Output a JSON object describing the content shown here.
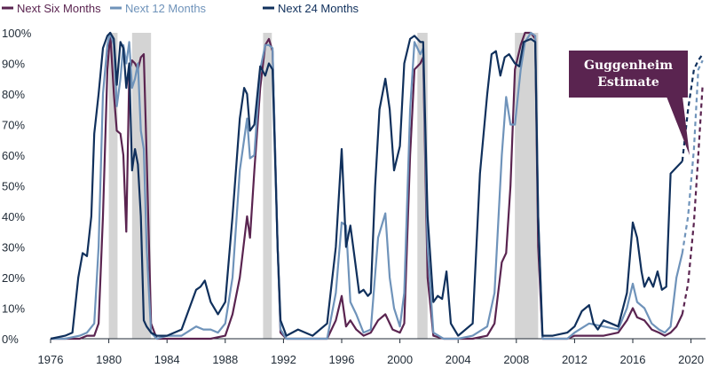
{
  "chart_data": {
    "type": "line",
    "title": "",
    "xlabel": "",
    "ylabel": "",
    "xlim": [
      1976,
      2021
    ],
    "ylim": [
      0,
      100
    ],
    "y_ticks": [
      "0%",
      "10%",
      "20%",
      "30%",
      "40%",
      "50%",
      "60%",
      "70%",
      "80%",
      "90%",
      "100%"
    ],
    "x_ticks": [
      "1976",
      "1980",
      "1984",
      "1988",
      "1992",
      "1996",
      "2000",
      "2004",
      "2008",
      "2012",
      "2016",
      "2020"
    ],
    "grid": false,
    "legend_position": "top-left",
    "recessions": [
      [
        1980.0,
        1980.6
      ],
      [
        1981.6,
        1982.9
      ],
      [
        1990.6,
        1991.2
      ],
      [
        2001.2,
        2001.9
      ],
      [
        2007.9,
        2009.5
      ]
    ],
    "series": [
      {
        "name": "Next Six Months",
        "color": "#5a2450",
        "dashed_from": 2019.4,
        "points": [
          [
            1976,
            0
          ],
          [
            1977,
            0
          ],
          [
            1978,
            0
          ],
          [
            1978.5,
            1
          ],
          [
            1979,
            1
          ],
          [
            1979.3,
            5
          ],
          [
            1979.6,
            40
          ],
          [
            1979.9,
            88
          ],
          [
            1980.1,
            100
          ],
          [
            1980.35,
            80
          ],
          [
            1980.55,
            68
          ],
          [
            1980.8,
            67
          ],
          [
            1981,
            60
          ],
          [
            1981.2,
            35
          ],
          [
            1981.4,
            86
          ],
          [
            1981.6,
            91
          ],
          [
            1981.8,
            90
          ],
          [
            1982,
            88
          ],
          [
            1982.2,
            92
          ],
          [
            1982.4,
            93
          ],
          [
            1982.6,
            60
          ],
          [
            1982.9,
            5
          ],
          [
            1983.3,
            0
          ],
          [
            1984,
            0
          ],
          [
            1985,
            0
          ],
          [
            1986,
            0
          ],
          [
            1987,
            0
          ],
          [
            1988,
            1
          ],
          [
            1988.5,
            8
          ],
          [
            1989,
            20
          ],
          [
            1989.5,
            40
          ],
          [
            1989.7,
            33
          ],
          [
            1990,
            55
          ],
          [
            1990.4,
            82
          ],
          [
            1990.75,
            96
          ],
          [
            1991,
            98
          ],
          [
            1991.25,
            94
          ],
          [
            1991.6,
            30
          ],
          [
            1991.8,
            2
          ],
          [
            1992.2,
            0
          ],
          [
            1993,
            0
          ],
          [
            1994,
            0
          ],
          [
            1995,
            0
          ],
          [
            1995.6,
            6
          ],
          [
            1996,
            14
          ],
          [
            1996.3,
            4
          ],
          [
            1996.6,
            6
          ],
          [
            1997,
            3
          ],
          [
            1997.5,
            1
          ],
          [
            1998,
            2
          ],
          [
            1998.5,
            6
          ],
          [
            1999,
            8
          ],
          [
            1999.5,
            3
          ],
          [
            2000,
            2
          ],
          [
            2000.3,
            5
          ],
          [
            2000.7,
            60
          ],
          [
            2001,
            88
          ],
          [
            2001.4,
            90
          ],
          [
            2001.6,
            92
          ],
          [
            2001.9,
            20
          ],
          [
            2002.3,
            1
          ],
          [
            2003,
            0
          ],
          [
            2004,
            0
          ],
          [
            2005,
            0
          ],
          [
            2006,
            1
          ],
          [
            2006.5,
            5
          ],
          [
            2007,
            25
          ],
          [
            2007.3,
            28
          ],
          [
            2007.6,
            50
          ],
          [
            2007.9,
            88
          ],
          [
            2008.3,
            96
          ],
          [
            2008.6,
            100
          ],
          [
            2009,
            100
          ],
          [
            2009.3,
            98
          ],
          [
            2009.5,
            30
          ],
          [
            2009.8,
            0
          ],
          [
            2010.5,
            0
          ],
          [
            2011.5,
            0
          ],
          [
            2012,
            1
          ],
          [
            2013,
            1
          ],
          [
            2014,
            1
          ],
          [
            2015,
            2
          ],
          [
            2015.6,
            6
          ],
          [
            2016,
            10
          ],
          [
            2016.3,
            7
          ],
          [
            2016.8,
            6
          ],
          [
            2017.3,
            3
          ],
          [
            2017.8,
            2
          ],
          [
            2018.2,
            1
          ],
          [
            2018.6,
            2
          ],
          [
            2019,
            4
          ],
          [
            2019.4,
            8
          ],
          [
            2019.8,
            18
          ],
          [
            2020.2,
            38
          ],
          [
            2020.5,
            60
          ],
          [
            2020.8,
            83
          ]
        ]
      },
      {
        "name": "Next 12 Months",
        "color": "#6f93ba",
        "dashed_from": 2019.4,
        "points": [
          [
            1976,
            0
          ],
          [
            1977,
            0
          ],
          [
            1978,
            1
          ],
          [
            1978.5,
            2
          ],
          [
            1979,
            5
          ],
          [
            1979.3,
            30
          ],
          [
            1979.6,
            80
          ],
          [
            1979.9,
            96
          ],
          [
            1980.1,
            100
          ],
          [
            1980.35,
            96
          ],
          [
            1980.55,
            76
          ],
          [
            1980.8,
            85
          ],
          [
            1981,
            96
          ],
          [
            1981.2,
            90
          ],
          [
            1981.4,
            97
          ],
          [
            1981.6,
            82
          ],
          [
            1981.8,
            85
          ],
          [
            1982,
            90
          ],
          [
            1982.2,
            68
          ],
          [
            1982.4,
            62
          ],
          [
            1982.6,
            30
          ],
          [
            1982.9,
            2
          ],
          [
            1983.3,
            0
          ],
          [
            1984,
            1
          ],
          [
            1985,
            1
          ],
          [
            1986,
            4
          ],
          [
            1986.5,
            3
          ],
          [
            1987,
            3
          ],
          [
            1987.5,
            2
          ],
          [
            1988,
            5
          ],
          [
            1988.5,
            20
          ],
          [
            1989,
            55
          ],
          [
            1989.5,
            72
          ],
          [
            1989.7,
            59
          ],
          [
            1990,
            60
          ],
          [
            1990.4,
            88
          ],
          [
            1990.75,
            96
          ],
          [
            1991,
            96
          ],
          [
            1991.25,
            95
          ],
          [
            1991.6,
            30
          ],
          [
            1991.8,
            3
          ],
          [
            1992.2,
            0
          ],
          [
            1993,
            0
          ],
          [
            1994,
            0
          ],
          [
            1995,
            0
          ],
          [
            1995.6,
            15
          ],
          [
            1996,
            38
          ],
          [
            1996.3,
            37
          ],
          [
            1996.6,
            12
          ],
          [
            1997,
            8
          ],
          [
            1997.5,
            2
          ],
          [
            1998,
            3
          ],
          [
            1998.5,
            33
          ],
          [
            1999,
            41
          ],
          [
            1999.3,
            20
          ],
          [
            1999.6,
            10
          ],
          [
            2000,
            4
          ],
          [
            2000.3,
            15
          ],
          [
            2000.7,
            75
          ],
          [
            2001,
            97
          ],
          [
            2001.4,
            93
          ],
          [
            2001.6,
            95
          ],
          [
            2001.9,
            30
          ],
          [
            2002.3,
            2
          ],
          [
            2003,
            0
          ],
          [
            2004,
            0
          ],
          [
            2005,
            1
          ],
          [
            2006,
            4
          ],
          [
            2006.5,
            15
          ],
          [
            2007,
            60
          ],
          [
            2007.3,
            79
          ],
          [
            2007.6,
            70
          ],
          [
            2007.9,
            70
          ],
          [
            2008.3,
            88
          ],
          [
            2008.6,
            97
          ],
          [
            2009,
            100
          ],
          [
            2009.3,
            99
          ],
          [
            2009.5,
            40
          ],
          [
            2009.8,
            0
          ],
          [
            2010.5,
            0
          ],
          [
            2011.5,
            0
          ],
          [
            2012,
            2
          ],
          [
            2013,
            5
          ],
          [
            2014,
            4
          ],
          [
            2015,
            3
          ],
          [
            2015.6,
            10
          ],
          [
            2016,
            18
          ],
          [
            2016.3,
            12
          ],
          [
            2016.8,
            10
          ],
          [
            2017.3,
            5
          ],
          [
            2017.8,
            3
          ],
          [
            2018.2,
            2
          ],
          [
            2018.6,
            4
          ],
          [
            2019,
            20
          ],
          [
            2019.4,
            28
          ],
          [
            2019.8,
            40
          ],
          [
            2020.2,
            62
          ],
          [
            2020.5,
            88
          ],
          [
            2020.8,
            91
          ]
        ]
      },
      {
        "name": "Next 24 Months",
        "color": "#10305c",
        "dashed_from": 2019.4,
        "points": [
          [
            1976,
            0
          ],
          [
            1977,
            1
          ],
          [
            1977.5,
            2
          ],
          [
            1977.9,
            20
          ],
          [
            1978.2,
            28
          ],
          [
            1978.5,
            27
          ],
          [
            1978.8,
            40
          ],
          [
            1979,
            67
          ],
          [
            1979.3,
            80
          ],
          [
            1979.6,
            95
          ],
          [
            1979.9,
            99
          ],
          [
            1980.1,
            100
          ],
          [
            1980.35,
            98
          ],
          [
            1980.55,
            83
          ],
          [
            1980.8,
            97
          ],
          [
            1981,
            95
          ],
          [
            1981.2,
            82
          ],
          [
            1981.4,
            90
          ],
          [
            1981.6,
            55
          ],
          [
            1981.8,
            62
          ],
          [
            1982,
            57
          ],
          [
            1982.2,
            40
          ],
          [
            1982.4,
            6
          ],
          [
            1982.6,
            4
          ],
          [
            1982.9,
            2
          ],
          [
            1983.3,
            1
          ],
          [
            1984,
            1
          ],
          [
            1985,
            3
          ],
          [
            1986,
            16
          ],
          [
            1986.3,
            17
          ],
          [
            1986.6,
            19
          ],
          [
            1987,
            12
          ],
          [
            1987.5,
            8
          ],
          [
            1988,
            12
          ],
          [
            1988.5,
            40
          ],
          [
            1989,
            72
          ],
          [
            1989.3,
            82
          ],
          [
            1989.5,
            80
          ],
          [
            1989.7,
            68
          ],
          [
            1990,
            70
          ],
          [
            1990.4,
            89
          ],
          [
            1990.75,
            86
          ],
          [
            1991,
            90
          ],
          [
            1991.25,
            88
          ],
          [
            1991.6,
            30
          ],
          [
            1991.8,
            6
          ],
          [
            1992.2,
            1
          ],
          [
            1993,
            3
          ],
          [
            1994,
            1
          ],
          [
            1995,
            5
          ],
          [
            1995.6,
            30
          ],
          [
            1996,
            62
          ],
          [
            1996.3,
            30
          ],
          [
            1996.6,
            37
          ],
          [
            1996.9,
            26
          ],
          [
            1997.2,
            15
          ],
          [
            1997.5,
            16
          ],
          [
            1997.8,
            14
          ],
          [
            1998,
            15
          ],
          [
            1998.3,
            50
          ],
          [
            1998.6,
            75
          ],
          [
            1999,
            85
          ],
          [
            1999.3,
            75
          ],
          [
            1999.6,
            55
          ],
          [
            2000,
            63
          ],
          [
            2000.3,
            90
          ],
          [
            2000.7,
            98
          ],
          [
            2001,
            99
          ],
          [
            2001.4,
            97
          ],
          [
            2001.6,
            97
          ],
          [
            2001.9,
            40
          ],
          [
            2002.3,
            12
          ],
          [
            2002.6,
            14
          ],
          [
            2002.9,
            13
          ],
          [
            2003.2,
            22
          ],
          [
            2003.5,
            5
          ],
          [
            2004,
            1
          ],
          [
            2005,
            5
          ],
          [
            2005.5,
            54
          ],
          [
            2006,
            80
          ],
          [
            2006.3,
            93
          ],
          [
            2006.6,
            94
          ],
          [
            2006.9,
            86
          ],
          [
            2007.2,
            92
          ],
          [
            2007.5,
            93
          ],
          [
            2007.9,
            90
          ],
          [
            2008.2,
            89
          ],
          [
            2008.5,
            97
          ],
          [
            2009,
            98
          ],
          [
            2009.3,
            97
          ],
          [
            2009.5,
            40
          ],
          [
            2009.8,
            1
          ],
          [
            2010.5,
            1
          ],
          [
            2011.5,
            2
          ],
          [
            2012,
            4
          ],
          [
            2012.5,
            9
          ],
          [
            2013,
            11
          ],
          [
            2013.3,
            5
          ],
          [
            2013.6,
            3
          ],
          [
            2014,
            6
          ],
          [
            2015,
            4
          ],
          [
            2015.6,
            15
          ],
          [
            2016,
            38
          ],
          [
            2016.3,
            33
          ],
          [
            2016.6,
            22
          ],
          [
            2016.8,
            17
          ],
          [
            2017.1,
            20
          ],
          [
            2017.4,
            17
          ],
          [
            2017.7,
            22
          ],
          [
            2018,
            16
          ],
          [
            2018.3,
            17
          ],
          [
            2018.6,
            54
          ],
          [
            2019,
            56
          ],
          [
            2019.4,
            58
          ],
          [
            2019.8,
            75
          ],
          [
            2020.2,
            88
          ],
          [
            2020.5,
            91
          ],
          [
            2020.8,
            93
          ]
        ]
      }
    ],
    "annotation": {
      "text_lines": [
        "Guggenheim",
        "Estimate"
      ],
      "color": "#5a2450",
      "points_to": [
        2019.9,
        60
      ]
    }
  }
}
